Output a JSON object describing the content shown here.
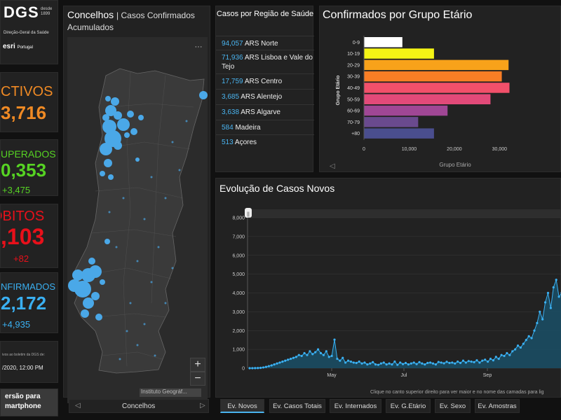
{
  "logo": {
    "brand": "DGS",
    "since_line1": "desde",
    "since_line2": "1899",
    "subtitle": "Direção-Geral da Saúde",
    "partner": "esri",
    "partner_country": "Portugal"
  },
  "stats": {
    "ativos": {
      "label": "CTIVOS",
      "value": "3,716",
      "color": "#f08a24"
    },
    "recuperados": {
      "label": "UPERADOS",
      "value": "0,353",
      "delta": "+3,475",
      "color": "#56d323"
    },
    "obitos": {
      "label": "ÓBITOS",
      "value": ",103",
      "delta": "+82",
      "color": "#e8101a"
    },
    "confirmados": {
      "label": "NFIRMADOS",
      "value": "2,172",
      "delta": "+4,935",
      "color": "#3ab0f2"
    }
  },
  "note": {
    "source_text": "ivos ao boletim da DGS de:",
    "datetime": "/2020, 12:00 PM"
  },
  "smartphone": {
    "line1": "ersão para",
    "line2": "martphone"
  },
  "map": {
    "title": "Concelhos",
    "subtitle": "| Casos Confirmados Acumulados",
    "menu_label": "···",
    "zoom_in": "+",
    "zoom_out": "−",
    "attribution": "Instituto Geográf...",
    "footer_label": "Concelhos",
    "prev": "◁",
    "next": "▷"
  },
  "regions": {
    "header": "Casos por Região de Saúde",
    "items": [
      {
        "value": "94,057",
        "name": "ARS Norte"
      },
      {
        "value": "71,936",
        "name": "ARS Lisboa e Vale do Tejo"
      },
      {
        "value": "17,759",
        "name": "ARS Centro"
      },
      {
        "value": "3,685",
        "name": "ARS Alentejo"
      },
      {
        "value": "3,638",
        "name": "ARS Algarve"
      },
      {
        "value": "584",
        "name": "Madeira"
      },
      {
        "value": "513",
        "name": "Açores"
      }
    ]
  },
  "age_panel": {
    "title": "Confirmados por Grupo Etário",
    "scroll_arrow": "◁"
  },
  "evo_panel": {
    "title": "Evolução de Casos Novos",
    "hint": "Clique no canto superior direito para ver maior e no nome das camadas para lig",
    "slider_handle": "||"
  },
  "tabs": [
    "Ev. Novos",
    "Ev. Casos Totais",
    "Ev. Internados",
    "Ev. G.Etário",
    "Ev. Sexo",
    "Ev. Amostras"
  ],
  "chart_data": [
    {
      "type": "bar",
      "title": "Confirmados por Grupo Etário",
      "categories": [
        "0-9",
        "10-19",
        "20-29",
        "30-39",
        "40-49",
        "50-59",
        "60-69",
        "70-79",
        "+80"
      ],
      "values": [
        8500,
        15500,
        32000,
        30500,
        32200,
        28000,
        18500,
        12000,
        15500
      ],
      "colors": [
        "#ffffff",
        "#f5f515",
        "#f8a21a",
        "#f97e25",
        "#f2506a",
        "#e24a79",
        "#a04795",
        "#6a4a8e",
        "#4a4e8e"
      ],
      "xlabel": "Grupo Etário",
      "ylabel": "Grupo Etário",
      "xticks": [
        "0",
        "10,000",
        "20,000",
        "30,000"
      ],
      "xlim": [
        0,
        36000
      ],
      "orientation": "horizontal"
    },
    {
      "type": "area",
      "title": "Evolução de Casos Novos",
      "yticks": [
        "0",
        "1,000",
        "2,000",
        "3,000",
        "4,000",
        "5,000",
        "6,000",
        "7,000",
        "8,000"
      ],
      "ylim": [
        0,
        8000
      ],
      "xtick_labels": [
        "May",
        "Jul",
        "Sep"
      ],
      "series": [
        {
          "values": [
            0,
            2,
            5,
            10,
            20,
            40,
            70,
            110,
            150,
            200,
            250,
            300,
            350,
            400,
            450,
            500,
            550,
            600,
            700,
            650,
            800,
            700,
            900,
            750,
            850,
            1000,
            800,
            700,
            900,
            600,
            650,
            1516,
            500,
            400,
            550,
            300,
            400,
            350,
            300,
            280,
            350,
            250,
            300,
            200,
            250,
            320,
            200,
            180,
            250,
            300,
            200,
            250,
            200,
            350,
            180,
            300,
            220,
            280,
            200,
            250,
            300,
            220,
            320,
            250,
            200,
            280,
            300,
            250,
            200,
            330,
            300,
            260,
            340,
            280,
            300,
            250,
            350,
            280,
            400,
            300,
            380,
            350,
            320,
            420,
            300,
            400,
            450,
            350,
            500,
            420,
            600,
            500,
            700,
            650,
            800,
            700,
            900,
            1000,
            1200,
            1100,
            1300,
            1500,
            1700,
            1600,
            2000,
            2400,
            3000,
            2600,
            3500,
            4000,
            3200,
            4300,
            4700,
            3800,
            4000
          ]
        }
      ]
    }
  ]
}
